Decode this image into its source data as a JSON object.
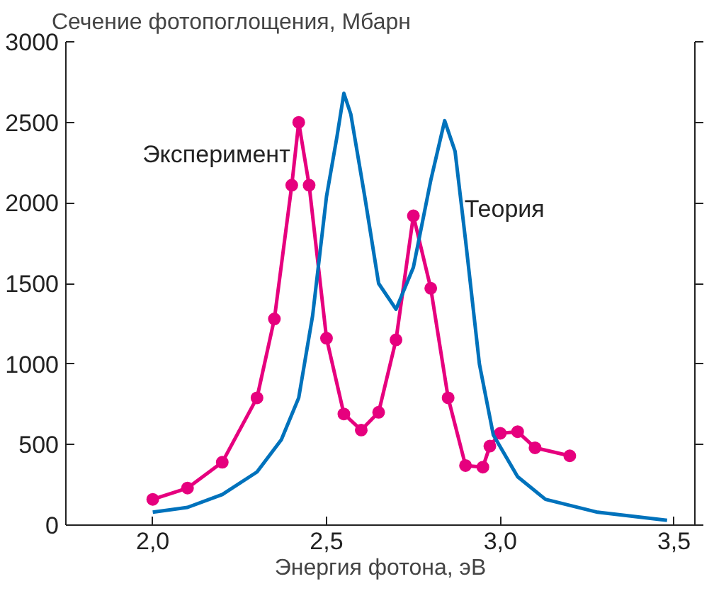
{
  "chart_data": {
    "type": "line",
    "ylabel": "Сечение фотопоглощения, Мбарн",
    "xlabel": "Энергия фотона, эВ",
    "xlim": [
      1.75,
      3.56
    ],
    "ylim": [
      0,
      3000
    ],
    "xticks": [
      {
        "value": 2.0,
        "label": "2,0"
      },
      {
        "value": 2.5,
        "label": "2,5"
      },
      {
        "value": 3.0,
        "label": "3,0"
      },
      {
        "value": 3.5,
        "label": "3,5"
      }
    ],
    "yticks": [
      0,
      500,
      1000,
      1500,
      2000,
      2500,
      3000
    ],
    "grid": false,
    "series": [
      {
        "name": "Эксперимент",
        "color": "#e6007e",
        "marker": "circle",
        "x": [
          2.0,
          2.1,
          2.2,
          2.3,
          2.35,
          2.4,
          2.42,
          2.45,
          2.5,
          2.55,
          2.6,
          2.65,
          2.7,
          2.75,
          2.8,
          2.85,
          2.9,
          2.95,
          2.97,
          3.0,
          3.05,
          3.1,
          3.2
        ],
        "values": [
          160,
          230,
          390,
          790,
          1280,
          2110,
          2500,
          2110,
          1160,
          690,
          590,
          700,
          1150,
          1920,
          1470,
          790,
          370,
          360,
          490,
          570,
          580,
          480,
          430
        ]
      },
      {
        "name": "Теория",
        "color": "#0072bc",
        "marker": "none",
        "x": [
          2.0,
          2.1,
          2.2,
          2.3,
          2.37,
          2.42,
          2.46,
          2.5,
          2.53,
          2.55,
          2.57,
          2.61,
          2.65,
          2.7,
          2.75,
          2.8,
          2.84,
          2.87,
          2.9,
          2.94,
          2.98,
          3.05,
          3.13,
          3.28,
          3.48
        ],
        "values": [
          80,
          110,
          190,
          330,
          530,
          790,
          1300,
          2040,
          2410,
          2680,
          2550,
          2040,
          1500,
          1340,
          1600,
          2140,
          2510,
          2320,
          1770,
          1000,
          560,
          300,
          160,
          80,
          30
        ]
      }
    ]
  }
}
